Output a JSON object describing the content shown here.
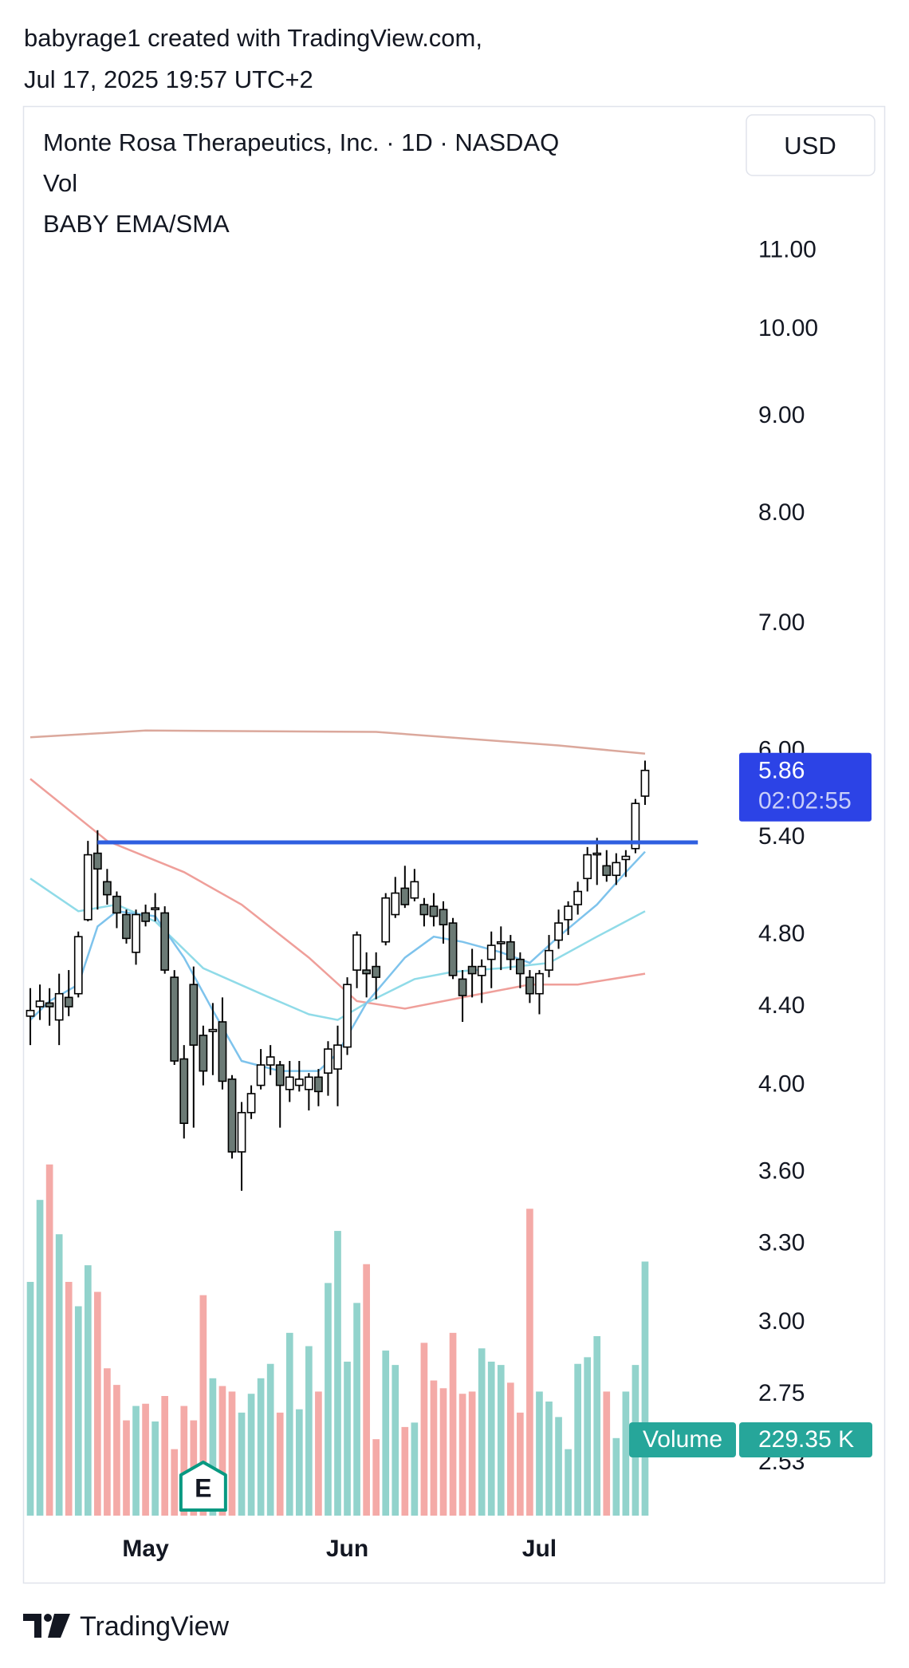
{
  "header": {
    "line1": "babyrage1 created with TradingView.com,",
    "line2": "Jul 17, 2025 19:57 UTC+2"
  },
  "footer": {
    "brand": "TradingView"
  },
  "chart_data": {
    "type": "candlestick",
    "title": "Monte Rosa Therapeutics, Inc. · 1D · NASDAQ",
    "indicators": [
      "Vol",
      "BABY EMA/SMA"
    ],
    "currency": "USD",
    "log_scale": true,
    "grid": false,
    "categories": [
      null,
      null,
      null,
      null,
      null,
      null,
      null,
      null,
      null,
      null,
      null,
      null,
      "May",
      null,
      null,
      null,
      null,
      null,
      null,
      null,
      null,
      null,
      null,
      null,
      null,
      null,
      null,
      null,
      null,
      null,
      null,
      null,
      null,
      "Jun",
      null,
      null,
      null,
      null,
      null,
      null,
      null,
      null,
      null,
      null,
      null,
      null,
      null,
      null,
      null,
      null,
      null,
      null,
      null,
      "Jul",
      null,
      null,
      null,
      null,
      null,
      null,
      null,
      null,
      null,
      null,
      null
    ],
    "xlim": [
      -0.75,
      73.8
    ],
    "ylim": [
      2.374,
      13.1
    ],
    "yticks": [
      {
        "value": 11,
        "label": "11.00"
      },
      {
        "value": 10,
        "label": "10.00"
      },
      {
        "value": 9,
        "label": "9.00"
      },
      {
        "value": 8,
        "label": "8.00"
      },
      {
        "value": 7,
        "label": "7.00"
      },
      {
        "value": 6,
        "label": "6.00"
      },
      {
        "value": 5.4,
        "label": "5.40"
      },
      {
        "value": 4.8,
        "label": "4.80"
      },
      {
        "value": 4.4,
        "label": "4.40"
      },
      {
        "value": 4,
        "label": "4.00"
      },
      {
        "value": 3.6,
        "label": "3.60"
      },
      {
        "value": 3.3,
        "label": "3.30"
      },
      {
        "value": 3,
        "label": "3.00"
      },
      {
        "value": 2.75,
        "label": "2.75"
      },
      {
        "value": 2.53,
        "label": "2.53"
      }
    ],
    "up_color": "#ffffff",
    "down_color": "#6b7a75",
    "border_color": "#000000",
    "open": [
      4.35,
      4.4,
      4.42,
      4.33,
      4.45,
      4.47,
      4.89,
      5.3,
      5.12,
      5.03,
      4.92,
      4.7,
      4.93,
      4.95,
      4.93,
      4.56,
      4.13,
      4.52,
      4.25,
      4.27,
      4.32,
      4.03,
      3.69,
      3.87,
      4.0,
      4.1,
      4.1,
      3.98,
      4.0,
      3.98,
      4.04,
      4.06,
      4.08,
      4.19,
      4.6,
      4.6,
      4.62,
      4.76,
      4.92,
      5.08,
      5.02,
      4.98,
      4.97,
      4.95,
      4.87,
      4.55,
      4.62,
      4.57,
      4.66,
      4.75,
      4.76,
      4.66,
      4.56,
      4.47,
      4.6,
      4.77,
      4.89,
      4.98,
      5.14,
      5.29,
      5.22,
      5.16,
      5.26,
      5.33,
      5.68
    ],
    "high": [
      4.5,
      4.52,
      4.5,
      4.58,
      4.6,
      4.82,
      5.38,
      5.45,
      5.2,
      5.06,
      4.95,
      4.95,
      4.98,
      5.05,
      4.97,
      4.6,
      4.2,
      4.62,
      4.3,
      4.42,
      4.45,
      4.05,
      3.92,
      4.0,
      4.18,
      4.2,
      4.12,
      4.12,
      4.12,
      4.06,
      4.08,
      4.22,
      4.3,
      4.56,
      4.82,
      4.7,
      4.7,
      5.05,
      5.15,
      5.22,
      5.2,
      5.02,
      5.05,
      5.0,
      4.9,
      4.6,
      4.72,
      4.66,
      4.82,
      4.85,
      4.8,
      4.7,
      4.6,
      4.6,
      4.8,
      4.95,
      5.0,
      5.12,
      5.34,
      5.4,
      5.32,
      5.3,
      5.32,
      5.66,
      5.93
    ],
    "low": [
      4.2,
      4.33,
      4.3,
      4.2,
      4.35,
      4.45,
      4.88,
      4.95,
      4.98,
      4.84,
      4.75,
      4.63,
      4.85,
      4.88,
      4.58,
      4.1,
      3.75,
      3.8,
      4.0,
      4.05,
      3.98,
      3.66,
      3.52,
      3.84,
      3.98,
      4.05,
      3.8,
      3.92,
      3.97,
      3.88,
      3.9,
      3.95,
      3.9,
      4.15,
      4.5,
      4.45,
      4.44,
      4.74,
      4.9,
      4.96,
      5.0,
      4.85,
      4.85,
      4.75,
      4.55,
      4.32,
      4.45,
      4.42,
      4.5,
      4.6,
      4.6,
      4.5,
      4.42,
      4.36,
      4.56,
      4.72,
      4.8,
      4.92,
      5.06,
      5.1,
      5.12,
      5.1,
      5.15,
      5.3,
      5.62
    ],
    "close": [
      4.38,
      4.43,
      4.4,
      4.47,
      4.4,
      4.79,
      5.29,
      5.2,
      5.04,
      4.93,
      4.78,
      4.92,
      4.88,
      4.96,
      4.6,
      4.12,
      3.82,
      4.2,
      4.07,
      4.28,
      4.02,
      3.69,
      3.87,
      3.96,
      4.1,
      4.14,
      4.0,
      4.04,
      4.03,
      4.04,
      3.97,
      4.18,
      4.2,
      4.52,
      4.8,
      4.58,
      4.56,
      5.02,
      5.05,
      4.98,
      5.12,
      4.92,
      4.91,
      4.86,
      4.57,
      4.46,
      4.58,
      4.62,
      4.74,
      4.76,
      4.66,
      4.58,
      4.47,
      4.58,
      4.71,
      4.87,
      4.97,
      5.06,
      5.29,
      5.3,
      5.16,
      5.24,
      5.28,
      5.63,
      5.86
    ],
    "lines": [
      {
        "color": "#dba89c",
        "x": [
          0,
          12,
          36,
          55,
          64
        ],
        "values": [
          6.1,
          6.15,
          6.14,
          6.04,
          5.98
        ]
      },
      {
        "color": "#ef9f9a",
        "x": [
          0,
          8,
          16,
          22,
          29,
          34,
          39,
          46,
          52,
          57,
          64
        ],
        "values": [
          5.8,
          5.38,
          5.18,
          4.98,
          4.67,
          4.43,
          4.39,
          4.46,
          4.52,
          4.52,
          4.58
        ]
      },
      {
        "color": "#90dbe8",
        "x": [
          0,
          5,
          9,
          13,
          18,
          24,
          29,
          32,
          35,
          40,
          44,
          49,
          54,
          59,
          64
        ],
        "values": [
          5.14,
          4.94,
          4.98,
          4.88,
          4.61,
          4.47,
          4.36,
          4.33,
          4.42,
          4.55,
          4.59,
          4.61,
          4.64,
          4.79,
          4.94
        ]
      },
      {
        "color": "#7ec3ec",
        "x": [
          0,
          2,
          5,
          7,
          9,
          13,
          16,
          19,
          22,
          26,
          30,
          32,
          35,
          39,
          42,
          45,
          49,
          52,
          55,
          59,
          62,
          64
        ],
        "values": [
          4.33,
          4.43,
          4.52,
          4.85,
          4.94,
          4.91,
          4.67,
          4.38,
          4.12,
          4.07,
          4.07,
          4.16,
          4.42,
          4.67,
          4.79,
          4.76,
          4.7,
          4.64,
          4.79,
          4.98,
          5.18,
          5.31
        ]
      }
    ],
    "trend_line": {
      "color": "#2f5fe0",
      "x": [
        7,
        69.5
      ],
      "values": [
        5.37,
        5.37
      ]
    },
    "price_label": 5.86,
    "price_label_color": "#2c43e6",
    "countdown": "02:02:55",
    "volume": {
      "name": "Volume",
      "axis": "y2",
      "up_color": "#92d3cc",
      "down_color": "#f4aaa7",
      "label_color": "#26a69a",
      "values": [
        211000,
        285000,
        317000,
        254000,
        211000,
        189000,
        226000,
        202000,
        133000,
        118000,
        86000,
        99000,
        101000,
        85000,
        108000,
        60000,
        99000,
        86000,
        199000,
        124000,
        117000,
        112000,
        93000,
        110000,
        124000,
        137000,
        93000,
        165000,
        96000,
        153000,
        112000,
        210000,
        257000,
        139000,
        192000,
        227000,
        69000,
        149000,
        136000,
        80000,
        84000,
        156000,
        122000,
        115000,
        165000,
        110000,
        112000,
        151000,
        139000,
        136000,
        120000,
        93000,
        277000,
        112000,
        103000,
        89000,
        60000,
        137000,
        143000,
        162000,
        112000,
        70000,
        112000,
        136000,
        229350
      ],
      "last_label": "229.35 K"
    },
    "y2lim": [
      0,
      1271600
    ],
    "earnings": {
      "label": "E",
      "x": 18,
      "color": "#089981"
    }
  }
}
